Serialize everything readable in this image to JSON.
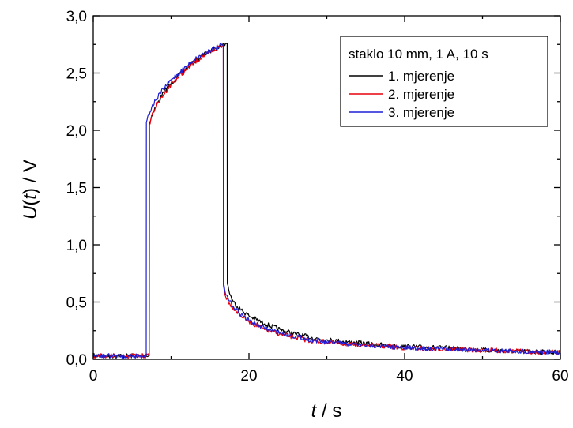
{
  "chart_data": {
    "type": "line",
    "title": "",
    "xlabel_var": "t",
    "xlabel_unit": " / s",
    "ylabel_var_a": "U",
    "ylabel_paren_open": "(",
    "ylabel_var_b": "t",
    "ylabel_paren_close": ")",
    "ylabel_unit": " / V",
    "xlim": [
      0,
      60
    ],
    "ylim": [
      0,
      3.0
    ],
    "x_ticks": [
      0,
      20,
      40,
      60
    ],
    "x_tick_labels": [
      "0",
      "20",
      "40",
      "60"
    ],
    "x_minor_ticks": [
      10,
      30,
      50
    ],
    "y_ticks": [
      0,
      0.5,
      1.0,
      1.5,
      2.0,
      2.5,
      3.0
    ],
    "y_tick_labels": [
      "0,0",
      "0,5",
      "1,0",
      "1,5",
      "2,0",
      "2,5",
      "3,0"
    ],
    "y_minor_ticks": [
      0.25,
      0.75,
      1.25,
      1.75,
      2.25,
      2.75
    ],
    "grid": false,
    "legend": {
      "title": "staklo 10 mm, 1 A, 10 s",
      "placement": "top-right"
    },
    "series": [
      {
        "name": "1. mjerenje",
        "color": "#000000",
        "x": [
          0,
          6.8,
          7.2,
          7.22,
          7.5,
          8,
          9,
          10,
          11,
          12,
          13,
          14,
          15,
          16,
          17,
          17.2,
          17.22,
          17.6,
          18,
          19,
          20,
          22,
          24,
          26,
          28,
          30,
          33,
          36,
          40,
          45,
          50,
          55,
          60
        ],
        "y": [
          0.03,
          0.03,
          0.03,
          2.05,
          2.13,
          2.2,
          2.33,
          2.41,
          2.48,
          2.54,
          2.6,
          2.65,
          2.69,
          2.72,
          2.76,
          2.76,
          0.66,
          0.56,
          0.5,
          0.43,
          0.38,
          0.31,
          0.26,
          0.22,
          0.19,
          0.17,
          0.15,
          0.13,
          0.11,
          0.1,
          0.08,
          0.07,
          0.06
        ]
      },
      {
        "name": "2. mjerenje",
        "color": "#e8000b",
        "x": [
          0,
          6.8,
          7.2,
          7.22,
          7.5,
          8,
          9,
          10,
          11,
          12,
          13,
          14,
          15,
          16,
          16.7,
          16.72,
          17,
          17.5,
          18,
          19,
          20,
          22,
          24,
          26,
          28,
          30,
          33,
          36,
          40,
          45,
          50,
          55,
          60
        ],
        "y": [
          0.03,
          0.03,
          0.03,
          2.05,
          2.13,
          2.2,
          2.31,
          2.4,
          2.47,
          2.53,
          2.59,
          2.64,
          2.68,
          2.72,
          2.74,
          0.64,
          0.55,
          0.49,
          0.45,
          0.38,
          0.33,
          0.26,
          0.22,
          0.19,
          0.16,
          0.15,
          0.13,
          0.12,
          0.1,
          0.09,
          0.08,
          0.07,
          0.06
        ]
      },
      {
        "name": "3. mjerenje",
        "color": "#1f1fd6",
        "x": [
          0,
          6.5,
          6.8,
          6.82,
          7,
          7.5,
          8,
          9,
          10,
          11,
          12,
          13,
          14,
          15,
          16,
          16.7,
          16.72,
          17,
          17.5,
          18,
          19,
          20,
          22,
          24,
          26,
          28,
          30,
          33,
          36,
          40,
          45,
          50,
          55,
          60
        ],
        "y": [
          0.03,
          0.03,
          0.03,
          2.07,
          2.12,
          2.2,
          2.26,
          2.36,
          2.44,
          2.5,
          2.56,
          2.62,
          2.66,
          2.7,
          2.73,
          2.75,
          0.65,
          0.57,
          0.51,
          0.46,
          0.39,
          0.34,
          0.27,
          0.23,
          0.2,
          0.17,
          0.15,
          0.13,
          0.12,
          0.1,
          0.09,
          0.08,
          0.07,
          0.06
        ]
      }
    ]
  }
}
